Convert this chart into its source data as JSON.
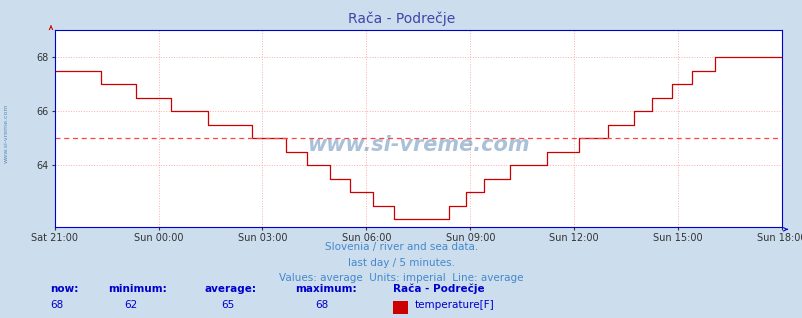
{
  "title": "Rača - Podrečje",
  "title_color": "#4444aa",
  "bg_color": "#ccdded",
  "plot_bg_color": "#ffffff",
  "grid_color": "#ffaaaa",
  "line_color": "#cc0000",
  "avg_line_color": "#ff4444",
  "avg_line_value": 65,
  "y_min": 62,
  "y_max": 69,
  "y_ticks": [
    64,
    66,
    68
  ],
  "x_labels": [
    "Sat 21:00",
    "Sun 00:00",
    "Sun 03:00",
    "Sun 06:00",
    "Sun 09:00",
    "Sun 12:00",
    "Sun 15:00",
    "Sun 18:00"
  ],
  "footer_line1": "Slovenia / river and sea data.",
  "footer_line2": "last day / 5 minutes.",
  "footer_line3": "Values: average  Units: imperial  Line: average",
  "footer_color": "#4488cc",
  "watermark": "www.si-vreme.com",
  "watermark_color": "#4477aa",
  "left_label": "www.si-vreme.com",
  "stats_label_color": "#0000cc",
  "stats_now": "68",
  "stats_min": "62",
  "stats_avg": "65",
  "stats_max": "68",
  "stats_name": "Rača - Podrečje",
  "stats_type": "temperature[F]",
  "legend_color": "#cc0000",
  "spine_color": "#0000cc",
  "arrow_color_x": "#0000cc",
  "arrow_color_y": "#cc0000"
}
